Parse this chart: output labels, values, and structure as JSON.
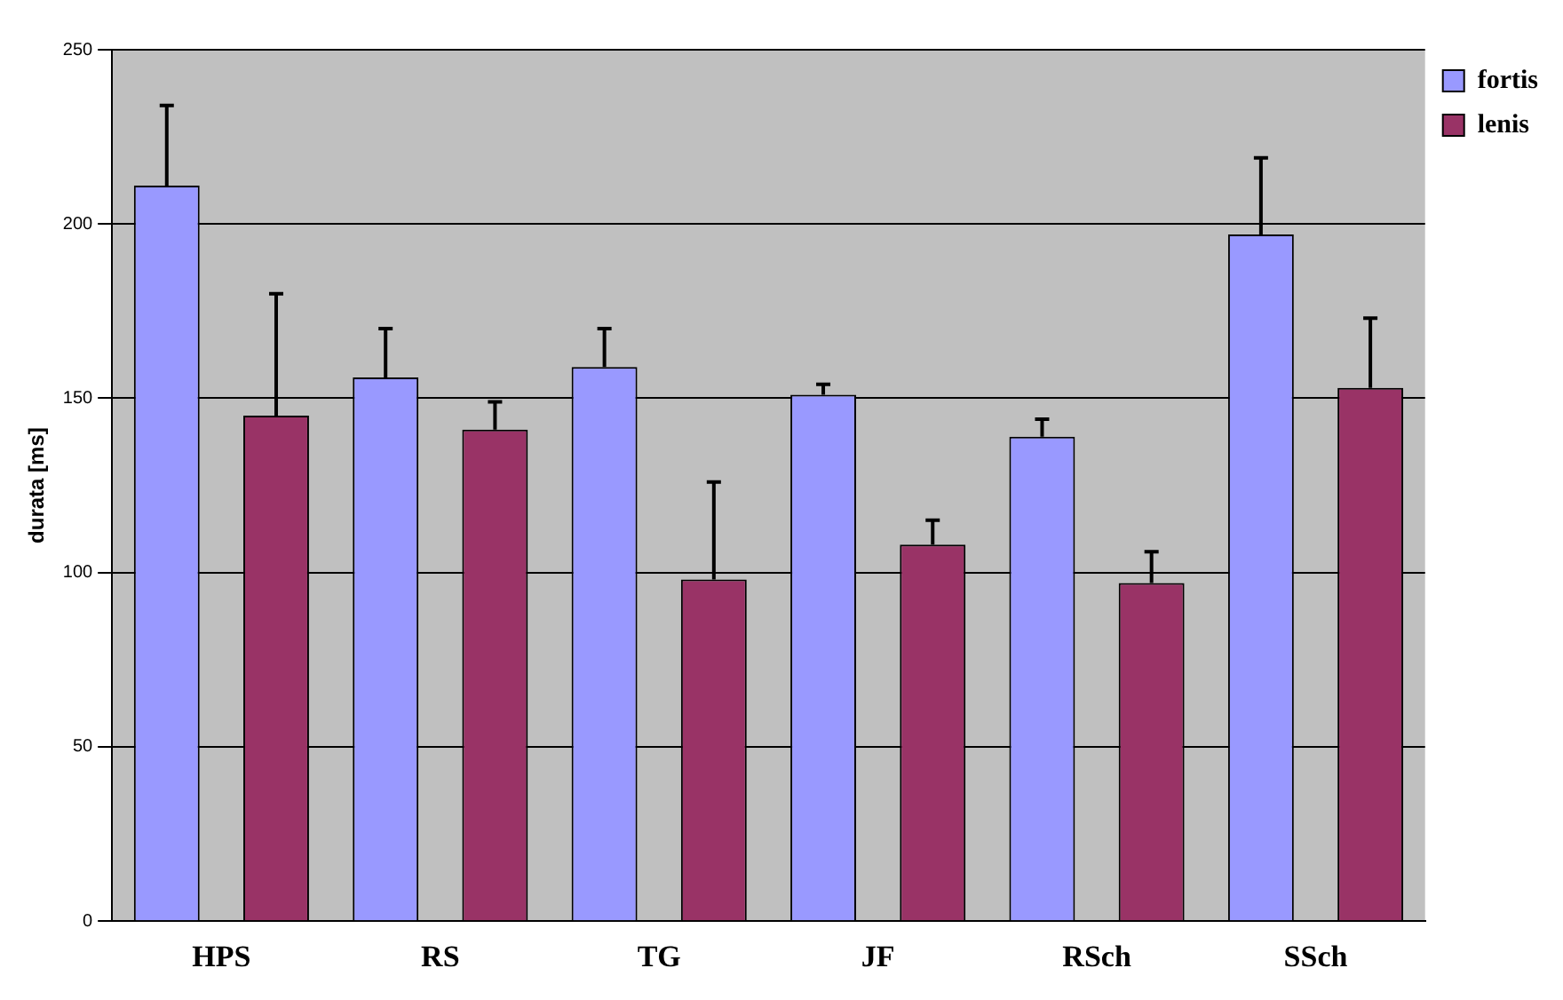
{
  "chart_data": {
    "type": "bar",
    "ylabel": "durata [ms]",
    "categories": [
      "HPS",
      "RS",
      "TG",
      "JF",
      "RSch",
      "SSch"
    ],
    "series": [
      {
        "name": "fortis",
        "color": "#9999ff",
        "values": [
          211,
          156,
          159,
          151,
          139,
          197
        ],
        "errors": [
          [
            211,
            234
          ],
          [
            156,
            170
          ],
          [
            159,
            170
          ],
          [
            151,
            154
          ],
          [
            139,
            144
          ],
          [
            197,
            219
          ]
        ]
      },
      {
        "name": "lenis",
        "color": "#993366",
        "values": [
          145,
          141,
          98,
          108,
          97,
          153
        ],
        "errors": [
          [
            145,
            180
          ],
          [
            141,
            149
          ],
          [
            98,
            126
          ],
          [
            108,
            115
          ],
          [
            97,
            106
          ],
          [
            153,
            173
          ]
        ]
      }
    ],
    "ylim": [
      0,
      250
    ],
    "yticks": [
      0,
      50,
      100,
      150,
      200,
      250
    ],
    "grid": "y",
    "legend": "top right"
  }
}
